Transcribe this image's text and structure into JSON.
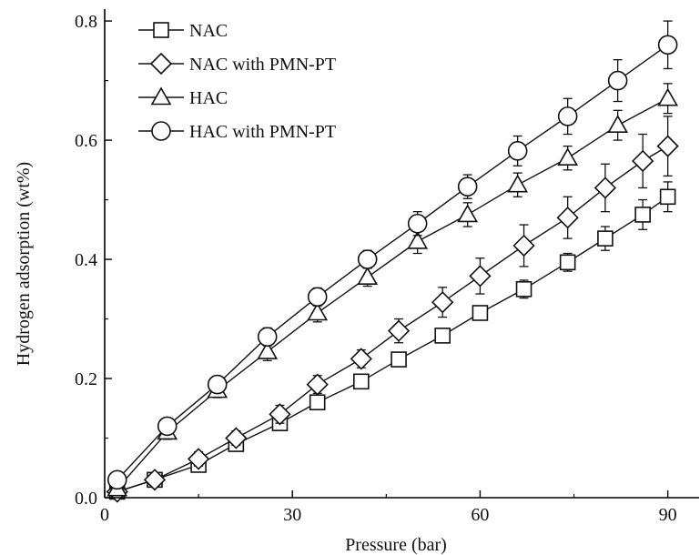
{
  "chart_data": {
    "type": "line",
    "title": "",
    "xlabel": "Pressure (bar)",
    "ylabel": "Hydrogen adsorption (wt%)",
    "xlim": [
      0,
      95
    ],
    "ylim": [
      0,
      0.82
    ],
    "xticks": [
      0,
      30,
      60,
      90
    ],
    "xtick_labels": [
      "0",
      "30",
      "60",
      "90"
    ],
    "yticks": [
      0.0,
      0.2,
      0.4,
      0.6,
      0.8
    ],
    "ytick_labels": [
      "0.0",
      "0.2",
      "0.4",
      "0.6",
      "0.8"
    ],
    "grid": false,
    "legend_position": "top-left",
    "series": [
      {
        "name": "NAC",
        "marker": "square",
        "x": [
          2,
          8,
          15,
          21,
          28,
          34,
          41,
          47,
          54,
          60,
          67,
          74,
          80,
          86,
          90
        ],
        "y": [
          0.01,
          0.03,
          0.055,
          0.09,
          0.125,
          0.16,
          0.195,
          0.232,
          0.272,
          0.31,
          0.35,
          0.395,
          0.435,
          0.475,
          0.505
        ],
        "err": [
          0.01,
          0.01,
          0.01,
          0.012,
          0.012,
          0.012,
          0.012,
          0.012,
          0.012,
          0.012,
          0.015,
          0.015,
          0.02,
          0.025,
          0.025
        ]
      },
      {
        "name": "NAC with PMN-PT",
        "marker": "diamond",
        "x": [
          2,
          8,
          15,
          21,
          28,
          34,
          41,
          47,
          54,
          60,
          67,
          74,
          80,
          86,
          90
        ],
        "y": [
          0.01,
          0.03,
          0.065,
          0.1,
          0.14,
          0.19,
          0.233,
          0.28,
          0.328,
          0.372,
          0.423,
          0.47,
          0.52,
          0.565,
          0.59
        ],
        "err": [
          0.01,
          0.01,
          0.012,
          0.012,
          0.015,
          0.015,
          0.015,
          0.02,
          0.025,
          0.03,
          0.035,
          0.035,
          0.04,
          0.045,
          0.05
        ]
      },
      {
        "name": "HAC",
        "marker": "triangle",
        "x": [
          2,
          10,
          18,
          26,
          34,
          42,
          50,
          58,
          66,
          74,
          82,
          90
        ],
        "y": [
          0.015,
          0.11,
          0.18,
          0.245,
          0.31,
          0.37,
          0.43,
          0.475,
          0.525,
          0.57,
          0.625,
          0.67
        ],
        "err": [
          0.01,
          0.012,
          0.012,
          0.015,
          0.015,
          0.015,
          0.02,
          0.02,
          0.02,
          0.02,
          0.025,
          0.025
        ]
      },
      {
        "name": "HAC with PMN-PT",
        "marker": "circle",
        "x": [
          2,
          10,
          18,
          26,
          34,
          42,
          50,
          58,
          66,
          74,
          82,
          90
        ],
        "y": [
          0.03,
          0.12,
          0.19,
          0.27,
          0.337,
          0.4,
          0.46,
          0.522,
          0.582,
          0.64,
          0.7,
          0.76
        ],
        "err": [
          0.01,
          0.012,
          0.012,
          0.015,
          0.015,
          0.015,
          0.02,
          0.02,
          0.025,
          0.03,
          0.035,
          0.04
        ]
      }
    ]
  }
}
